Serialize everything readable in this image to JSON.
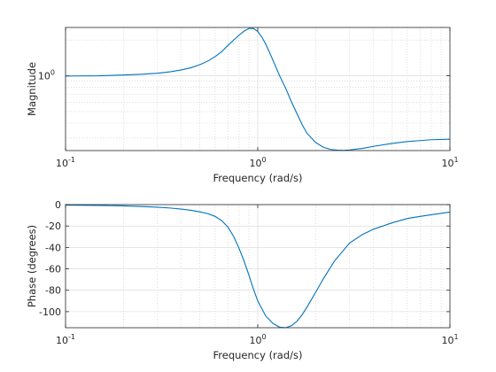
{
  "colors": {
    "line": "#0072bd",
    "axis": "#262626"
  },
  "chart_data": [
    {
      "type": "line",
      "xscale": "log",
      "yscale": "log",
      "xlabel": "Frequency (rad/s)",
      "ylabel": "Magnitude",
      "xlim": [
        0.1,
        10
      ],
      "ylim": [
        0.235,
        2.55
      ],
      "grid": true,
      "xticks": [
        0.1,
        1,
        10
      ],
      "xtick_labels": [
        {
          "base": "10",
          "exp": "-1"
        },
        {
          "base": "10",
          "exp": "0"
        },
        {
          "base": "10",
          "exp": "1"
        }
      ],
      "yticks": [
        1
      ],
      "ytick_labels": [
        {
          "base": "10",
          "exp": "0"
        }
      ],
      "series": [
        {
          "x": [
            0.1,
            0.15,
            0.2,
            0.25,
            0.3,
            0.35,
            0.4,
            0.45,
            0.5,
            0.55,
            0.6,
            0.65,
            0.7,
            0.75,
            0.8,
            0.85,
            0.9,
            0.95,
            1.0,
            1.05,
            1.1,
            1.15,
            1.2,
            1.3,
            1.4,
            1.5,
            1.6,
            1.7,
            1.8,
            2.0,
            2.2,
            2.4,
            2.6,
            2.8,
            3.0,
            3.5,
            4.0,
            5.0,
            6.0,
            7.0,
            8.0,
            10.0
          ],
          "values": [
            0.995,
            1.0,
            1.015,
            1.03,
            1.05,
            1.08,
            1.12,
            1.17,
            1.24,
            1.33,
            1.45,
            1.6,
            1.8,
            2.0,
            2.2,
            2.38,
            2.5,
            2.5,
            2.36,
            2.12,
            1.85,
            1.58,
            1.35,
            1.0,
            0.78,
            0.6,
            0.48,
            0.39,
            0.33,
            0.275,
            0.25,
            0.24,
            0.237,
            0.236,
            0.238,
            0.245,
            0.255,
            0.27,
            0.28,
            0.285,
            0.29,
            0.293
          ]
        }
      ]
    },
    {
      "type": "line",
      "xscale": "log",
      "xlabel": "Frequency (rad/s)",
      "ylabel": "Phase (degrees)",
      "xlim": [
        0.1,
        10
      ],
      "ylim": [
        -115,
        0
      ],
      "grid": true,
      "xticks": [
        0.1,
        1,
        10
      ],
      "xtick_labels": [
        {
          "base": "10",
          "exp": "-1"
        },
        {
          "base": "10",
          "exp": "0"
        },
        {
          "base": "10",
          "exp": "1"
        }
      ],
      "yticks": [
        0,
        -20,
        -40,
        -60,
        -80,
        -100
      ],
      "ytick_labels": [
        "0",
        "-20",
        "-40",
        "-60",
        "-80",
        "-100"
      ],
      "series": [
        {
          "x": [
            0.1,
            0.15,
            0.2,
            0.25,
            0.3,
            0.35,
            0.4,
            0.45,
            0.5,
            0.55,
            0.6,
            0.65,
            0.7,
            0.75,
            0.8,
            0.85,
            0.9,
            0.95,
            1.0,
            1.1,
            1.2,
            1.3,
            1.4,
            1.5,
            1.6,
            1.7,
            1.8,
            2.0,
            2.2,
            2.5,
            3.0,
            3.5,
            4.0,
            5.0,
            6.0,
            7.0,
            8.0,
            10.0
          ],
          "values": [
            -0.5,
            -0.8,
            -1.2,
            -1.8,
            -2.4,
            -3.2,
            -4.2,
            -5.3,
            -6.8,
            -8.5,
            -11.0,
            -15.0,
            -21.0,
            -30.0,
            -41.0,
            -53.0,
            -66.0,
            -79.0,
            -90.0,
            -104.0,
            -111.0,
            -114.5,
            -115.0,
            -113.0,
            -109.0,
            -103.0,
            -96.0,
            -82.0,
            -69.0,
            -53.0,
            -36.0,
            -28.0,
            -23.0,
            -17.0,
            -13.0,
            -11.0,
            -9.5,
            -7.0
          ]
        }
      ]
    }
  ]
}
